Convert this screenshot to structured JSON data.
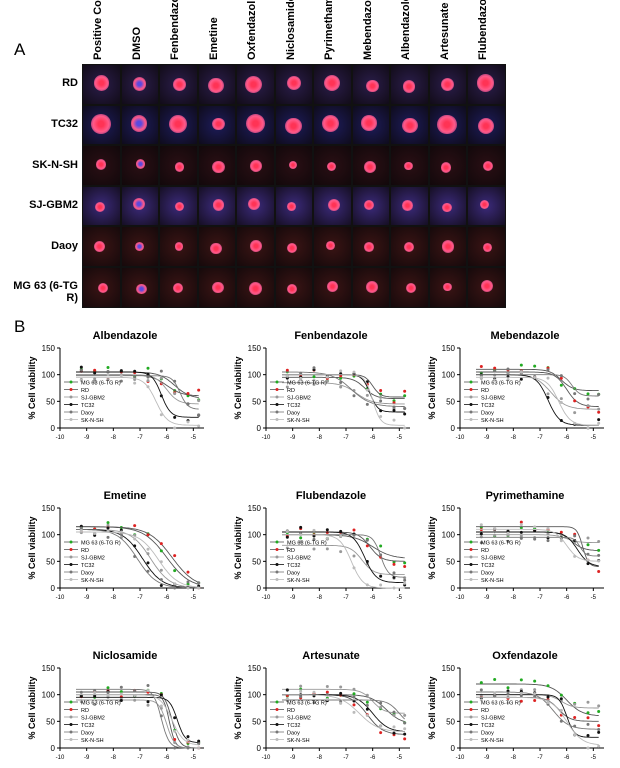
{
  "panel_a": {
    "letter": "A",
    "columns": [
      "Positive Control",
      "DMSO",
      "Fenbendazole",
      "Emetine",
      "Oxfendazol",
      "Niclosamide",
      "Pyrimethamine",
      "Mebendazole",
      "Albendazole",
      "Artesunate",
      "Flubendazole"
    ],
    "rows": [
      "RD",
      "TC32",
      "SK-N-SH",
      "SJ-GBM2",
      "Daoy",
      "MG 63 (6-TG R)"
    ],
    "row_colors": {
      "RD": "#2a1d4a",
      "TC32": "#1d1c5a",
      "SK-N-SH": "#2a0f14",
      "SJ-GBM2": "#3b2a7a",
      "Daoy": "#3a1414",
      "MG 63 (6-TG R)": "#3a1414"
    },
    "spot_color": "#ff5a8a",
    "core_color": "#ff3355"
  },
  "panel_b": {
    "letter": "B",
    "ylabel": "% Cell viability",
    "series_names": [
      "MG 63 (6-TG R)",
      "RD",
      "SJ-GBM2",
      "TC32",
      "Daoy",
      "SK-N-SH"
    ],
    "series_colors": [
      "#22aa22",
      "#dd2222",
      "#999999",
      "#111111",
      "#777777",
      "#bbbbbb"
    ],
    "x_ticks": [
      "-10",
      "-9",
      "-8",
      "-7",
      "-6",
      "-5"
    ],
    "y_ticks": [
      "0",
      "50",
      "100",
      "150"
    ],
    "xlim": [
      -10,
      -4.6
    ],
    "ylim": [
      0,
      150
    ],
    "legend_position": "bottom-left"
  },
  "chart_data": [
    {
      "type": "line",
      "title": "Albendazole",
      "ylabel": "% Cell viability",
      "xlim": [
        -10,
        -4.6
      ],
      "ylim": [
        0,
        150
      ],
      "series": [
        {
          "name": "MG 63 (6-TG R)",
          "top": 105,
          "bottom": 55,
          "logec50": -5.7,
          "hill": 1.5
        },
        {
          "name": "RD",
          "top": 100,
          "bottom": 60,
          "logec50": -6.0,
          "hill": 1.5
        },
        {
          "name": "SJ-GBM2",
          "top": 100,
          "bottom": 45,
          "logec50": -6.0,
          "hill": 2.0
        },
        {
          "name": "TC32",
          "top": 105,
          "bottom": 20,
          "logec50": -6.2,
          "hill": 2.5
        },
        {
          "name": "Daoy",
          "top": 98,
          "bottom": 35,
          "logec50": -5.5,
          "hill": 3.0
        },
        {
          "name": "SK-N-SH",
          "top": 95,
          "bottom": 5,
          "logec50": -6.4,
          "hill": 2.0
        }
      ]
    },
    {
      "type": "line",
      "title": "Fenbendazole",
      "ylabel": "% Cell viability",
      "xlim": [
        -10,
        -4.6
      ],
      "ylim": [
        0,
        150
      ],
      "series": [
        {
          "name": "MG 63 (6-TG R)",
          "top": 95,
          "bottom": 55,
          "logec50": -6.3,
          "hill": 2.0
        },
        {
          "name": "RD",
          "top": 100,
          "bottom": 58,
          "logec50": -6.0,
          "hill": 3.0
        },
        {
          "name": "SJ-GBM2",
          "top": 85,
          "bottom": 45,
          "logec50": -6.6,
          "hill": 1.5
        },
        {
          "name": "TC32",
          "top": 100,
          "bottom": 30,
          "logec50": -6.1,
          "hill": 3.0
        },
        {
          "name": "Daoy",
          "top": 105,
          "bottom": 40,
          "logec50": -6.8,
          "hill": 1.2
        },
        {
          "name": "SK-N-SH",
          "top": 100,
          "bottom": 5,
          "logec50": -6.0,
          "hill": 3.0
        }
      ]
    },
    {
      "type": "line",
      "title": "Mebendazole",
      "ylabel": "% Cell viability",
      "xlim": [
        -10,
        -4.6
      ],
      "ylim": [
        0,
        150
      ],
      "series": [
        {
          "name": "MG 63 (6-TG R)",
          "top": 110,
          "bottom": 70,
          "logec50": -6.2,
          "hill": 2.0
        },
        {
          "name": "RD",
          "top": 105,
          "bottom": 40,
          "logec50": -6.0,
          "hill": 2.0
        },
        {
          "name": "SJ-GBM2",
          "top": 100,
          "bottom": 35,
          "logec50": -6.6,
          "hill": 1.5
        },
        {
          "name": "TC32",
          "top": 100,
          "bottom": 5,
          "logec50": -6.7,
          "hill": 2.0
        },
        {
          "name": "Daoy",
          "top": 100,
          "bottom": 60,
          "logec50": -5.8,
          "hill": 3.0
        },
        {
          "name": "SK-N-SH",
          "top": 95,
          "bottom": 5,
          "logec50": -6.3,
          "hill": 2.0
        }
      ]
    },
    {
      "type": "line",
      "title": "Emetine",
      "ylabel": "% Cell viability",
      "xlim": [
        -10,
        -4.6
      ],
      "ylim": [
        0,
        150
      ],
      "series": [
        {
          "name": "MG 63 (6-TG R)",
          "top": 115,
          "bottom": 0,
          "logec50": -6.0,
          "hill": 1.0
        },
        {
          "name": "RD",
          "top": 115,
          "bottom": 0,
          "logec50": -5.8,
          "hill": 1.0
        },
        {
          "name": "SJ-GBM2",
          "top": 110,
          "bottom": 0,
          "logec50": -6.6,
          "hill": 1.2
        },
        {
          "name": "TC32",
          "top": 110,
          "bottom": 0,
          "logec50": -6.9,
          "hill": 1.2
        },
        {
          "name": "Daoy",
          "top": 110,
          "bottom": 0,
          "logec50": -7.1,
          "hill": 1.2
        },
        {
          "name": "SK-N-SH",
          "top": 105,
          "bottom": 0,
          "logec50": -6.3,
          "hill": 1.2
        }
      ]
    },
    {
      "type": "line",
      "title": "Flubendazole",
      "ylabel": "% Cell viability",
      "xlim": [
        -10,
        -4.6
      ],
      "ylim": [
        0,
        150
      ],
      "series": [
        {
          "name": "MG 63 (6-TG R)",
          "top": 100,
          "bottom": 55,
          "logec50": -6.0,
          "hill": 1.2
        },
        {
          "name": "RD",
          "top": 105,
          "bottom": 50,
          "logec50": -6.1,
          "hill": 2.0
        },
        {
          "name": "SJ-GBM2",
          "top": 80,
          "bottom": 25,
          "logec50": -6.4,
          "hill": 2.0
        },
        {
          "name": "TC32",
          "top": 105,
          "bottom": 10,
          "logec50": -6.3,
          "hill": 2.0
        },
        {
          "name": "Daoy",
          "top": 100,
          "bottom": 20,
          "logec50": -5.7,
          "hill": 3.0
        },
        {
          "name": "SK-N-SH",
          "top": 100,
          "bottom": 0,
          "logec50": -6.8,
          "hill": 2.0
        }
      ]
    },
    {
      "type": "line",
      "title": "Pyrimethamine",
      "ylabel": "% Cell viability",
      "xlim": [
        -10,
        -4.6
      ],
      "ylim": [
        0,
        150
      ],
      "series": [
        {
          "name": "MG 63 (6-TG R)",
          "top": 105,
          "bottom": 70,
          "logec50": -5.8,
          "hill": 2.0
        },
        {
          "name": "RD",
          "top": 115,
          "bottom": 40,
          "logec50": -5.4,
          "hill": 4.0
        },
        {
          "name": "SJ-GBM2",
          "top": 100,
          "bottom": 85,
          "logec50": -6.0,
          "hill": 2.0
        },
        {
          "name": "TC32",
          "top": 105,
          "bottom": 40,
          "logec50": -5.6,
          "hill": 2.0
        },
        {
          "name": "Daoy",
          "top": 95,
          "bottom": 60,
          "logec50": -5.5,
          "hill": 4.0
        },
        {
          "name": "SK-N-SH",
          "top": 110,
          "bottom": 50,
          "logec50": -6.0,
          "hill": 2.0
        }
      ]
    },
    {
      "type": "line",
      "title": "Niclosamide",
      "ylabel": "% Cell viability",
      "xlim": [
        -10,
        -4.6
      ],
      "ylim": [
        0,
        150
      ],
      "series": [
        {
          "name": "MG 63 (6-TG R)",
          "top": 105,
          "bottom": 0,
          "logec50": -5.8,
          "hill": 3.0
        },
        {
          "name": "RD",
          "top": 100,
          "bottom": 0,
          "logec50": -5.9,
          "hill": 4.0
        },
        {
          "name": "SJ-GBM2",
          "top": 90,
          "bottom": 0,
          "logec50": -6.0,
          "hill": 3.0
        },
        {
          "name": "TC32",
          "top": 95,
          "bottom": 10,
          "logec50": -5.6,
          "hill": 3.0
        },
        {
          "name": "Daoy",
          "top": 110,
          "bottom": 0,
          "logec50": -6.2,
          "hill": 3.0
        },
        {
          "name": "SK-N-SH",
          "top": 100,
          "bottom": 5,
          "logec50": -5.8,
          "hill": 2.0
        }
      ]
    },
    {
      "type": "line",
      "title": "Artesunate",
      "ylabel": "% Cell viability",
      "xlim": [
        -10,
        -4.6
      ],
      "ylim": [
        0,
        150
      ],
      "series": [
        {
          "name": "MG 63 (6-TG R)",
          "top": 100,
          "bottom": 45,
          "logec50": -5.5,
          "hill": 1.5
        },
        {
          "name": "RD",
          "top": 100,
          "bottom": 25,
          "logec50": -6.2,
          "hill": 1.5
        },
        {
          "name": "SJ-GBM2",
          "top": 110,
          "bottom": 65,
          "logec50": -6.0,
          "hill": 2.0
        },
        {
          "name": "TC32",
          "top": 100,
          "bottom": 30,
          "logec50": -6.0,
          "hill": 1.5
        },
        {
          "name": "Daoy",
          "top": 90,
          "bottom": 40,
          "logec50": -5.0,
          "hill": 2.0
        },
        {
          "name": "SK-N-SH",
          "top": 100,
          "bottom": 30,
          "logec50": -6.5,
          "hill": 1.2
        }
      ]
    },
    {
      "type": "line",
      "title": "Oxfendazole",
      "ylabel": "% Cell viability",
      "xlim": [
        -10,
        -4.6
      ],
      "ylim": [
        0,
        150
      ],
      "series": [
        {
          "name": "MG 63 (6-TG R)",
          "top": 120,
          "bottom": 60,
          "logec50": -6.0,
          "hill": 1.5
        },
        {
          "name": "RD",
          "top": 95,
          "bottom": 50,
          "logec50": -6.3,
          "hill": 2.0
        },
        {
          "name": "SJ-GBM2",
          "top": 100,
          "bottom": 75,
          "logec50": -6.2,
          "hill": 2.0
        },
        {
          "name": "TC32",
          "top": 100,
          "bottom": 20,
          "logec50": -6.0,
          "hill": 3.0
        },
        {
          "name": "Daoy",
          "top": 105,
          "bottom": 35,
          "logec50": -6.5,
          "hill": 1.5
        },
        {
          "name": "SK-N-SH",
          "top": 95,
          "bottom": 5,
          "logec50": -6.0,
          "hill": 1.5
        }
      ]
    }
  ]
}
